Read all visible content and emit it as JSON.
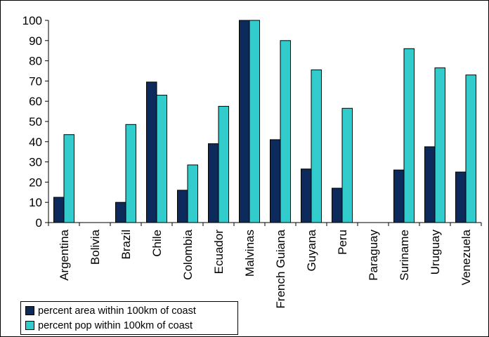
{
  "chart_data": {
    "type": "bar",
    "title": "",
    "xlabel": "",
    "ylabel": "",
    "ylim": [
      0,
      100
    ],
    "yticks": [
      "0",
      "10",
      "20",
      "30",
      "40",
      "50",
      "60",
      "70",
      "80",
      "90",
      "100"
    ],
    "grid": false,
    "legend_position": "bottom-left",
    "categories": [
      "Argentina",
      "Bolivia",
      "Brazil",
      "Chile",
      "Colombia",
      "Ecuador",
      "Malvinas",
      "French Guiana",
      "Guyana",
      "Peru",
      "Paraguay",
      "Suriname",
      "Uruguay",
      "Venezuela"
    ],
    "series": [
      {
        "name": "percent area within 100km of coast",
        "color": "#0d2a5c",
        "values": [
          12.5,
          0,
          10,
          69.5,
          16,
          39,
          100,
          41,
          26.5,
          17,
          0,
          26,
          37.5,
          25
        ]
      },
      {
        "name": "percent pop within 100km of coast",
        "color": "#33cccc",
        "values": [
          43.5,
          0,
          48.5,
          63,
          28.5,
          57.5,
          100,
          90,
          75.5,
          56.5,
          0,
          86,
          76.5,
          73
        ]
      }
    ]
  }
}
